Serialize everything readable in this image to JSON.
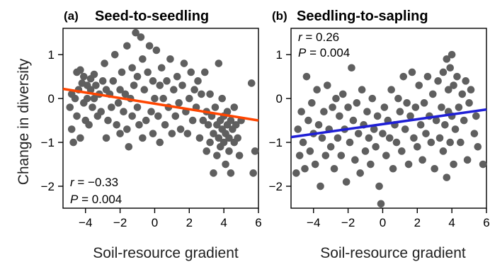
{
  "chart_data": [
    {
      "type": "scatter",
      "panel_letter": "(a)",
      "title": "Seed-to-seedling",
      "xlabel": "Soil-resource gradient",
      "ylabel": "Change in diversity",
      "xlim": [
        -5.3,
        6.0
      ],
      "ylim": [
        -2.5,
        1.6
      ],
      "xticks": [
        -4,
        -2,
        0,
        2,
        4,
        6
      ],
      "yticks": [
        -2,
        -1,
        0,
        1
      ],
      "grid": false,
      "stats": {
        "r_label": "r",
        "r_value": " = −0.33",
        "p_label": "P",
        "p_value": " = 0.004",
        "position": "bottom-left"
      },
      "fit_line": {
        "color": "#ff4500",
        "x": [
          -5.3,
          6.0
        ],
        "y": [
          0.22,
          -0.5
        ]
      },
      "points": [
        [
          -4.9,
          -0.2
        ],
        [
          -4.8,
          0.1
        ],
        [
          -4.8,
          -0.7
        ],
        [
          -4.7,
          -1.0
        ],
        [
          -4.6,
          0.0
        ],
        [
          -4.5,
          0.6
        ],
        [
          -4.5,
          -0.4
        ],
        [
          -4.4,
          0.2
        ],
        [
          -4.3,
          0.65
        ],
        [
          -4.3,
          -0.9
        ],
        [
          -4.2,
          0.35
        ],
        [
          -4.1,
          -0.1
        ],
        [
          -4.1,
          0.5
        ],
        [
          -4.0,
          -0.5
        ],
        [
          -3.9,
          0.3
        ],
        [
          -3.9,
          0.0
        ],
        [
          -3.8,
          -0.6
        ],
        [
          -3.7,
          0.45
        ],
        [
          -3.7,
          0.2
        ],
        [
          -3.6,
          -0.2
        ],
        [
          -3.5,
          0.55
        ],
        [
          -3.5,
          0.0
        ],
        [
          -3.4,
          0.3
        ],
        [
          -3.3,
          -0.4
        ],
        [
          -3.2,
          0.1
        ],
        [
          -3.1,
          -0.3
        ],
        [
          -3.0,
          0.4
        ],
        [
          -2.9,
          0.8
        ],
        [
          -2.8,
          -0.9
        ],
        [
          -2.8,
          0.2
        ],
        [
          -2.7,
          -0.5
        ],
        [
          -2.6,
          0.1
        ],
        [
          -2.5,
          -0.2
        ],
        [
          -2.4,
          0.4
        ],
        [
          -2.3,
          1.0
        ],
        [
          -2.2,
          -0.6
        ],
        [
          -2.1,
          -0.1
        ],
        [
          -2.0,
          0.2
        ],
        [
          -2.0,
          -0.8
        ],
        [
          -1.9,
          0.6
        ],
        [
          -1.8,
          -0.3
        ],
        [
          -1.7,
          0.1
        ],
        [
          -1.6,
          -0.7
        ],
        [
          -1.6,
          1.2
        ],
        [
          -1.5,
          -1.1
        ],
        [
          -1.4,
          0.0
        ],
        [
          -1.3,
          0.7
        ],
        [
          -1.3,
          -0.4
        ],
        [
          -1.2,
          0.3
        ],
        [
          -1.1,
          1.5
        ],
        [
          -1.0,
          -0.2
        ],
        [
          -1.0,
          0.5
        ],
        [
          -0.9,
          -0.6
        ],
        [
          -0.8,
          1.4
        ],
        [
          -0.7,
          0.9
        ],
        [
          -0.7,
          -0.9
        ],
        [
          -0.6,
          0.2
        ],
        [
          -0.5,
          -0.5
        ],
        [
          -0.4,
          0.6
        ],
        [
          -0.3,
          1.2
        ],
        [
          -0.2,
          -0.3
        ],
        [
          -0.1,
          0.4
        ],
        [
          -0.1,
          -0.8
        ],
        [
          0.0,
          0.0
        ],
        [
          0.1,
          1.1
        ],
        [
          0.2,
          -0.4
        ],
        [
          0.3,
          0.3
        ],
        [
          0.3,
          -1.0
        ],
        [
          0.4,
          0.7
        ],
        [
          0.5,
          0.0
        ],
        [
          0.6,
          -0.6
        ],
        [
          0.7,
          0.4
        ],
        [
          0.8,
          -0.2
        ],
        [
          0.9,
          0.9
        ],
        [
          1.0,
          -0.8
        ],
        [
          1.1,
          0.2
        ],
        [
          1.2,
          -0.4
        ],
        [
          1.3,
          0.5
        ],
        [
          1.4,
          -0.1
        ],
        [
          1.5,
          -0.7
        ],
        [
          1.6,
          0.3
        ],
        [
          1.7,
          0.8
        ],
        [
          1.8,
          -0.3
        ],
        [
          1.9,
          -0.8
        ],
        [
          2.0,
          0.0
        ],
        [
          2.1,
          0.6
        ],
        [
          2.2,
          -0.5
        ],
        [
          2.3,
          0.2
        ],
        [
          2.4,
          -0.2
        ],
        [
          2.5,
          0.4
        ],
        [
          2.6,
          -0.9
        ],
        [
          2.7,
          0.1
        ],
        [
          2.8,
          -0.5
        ],
        [
          2.9,
          0.6
        ],
        [
          3.0,
          -1.2
        ],
        [
          3.0,
          -0.3
        ],
        [
          3.1,
          -0.6
        ],
        [
          3.2,
          0.1
        ],
        [
          3.2,
          -1.0
        ],
        [
          3.3,
          -0.4
        ],
        [
          3.4,
          -0.8
        ],
        [
          3.4,
          -1.7
        ],
        [
          3.5,
          -0.2
        ],
        [
          3.6,
          -0.6
        ],
        [
          3.6,
          -1.3
        ],
        [
          3.7,
          -0.9
        ],
        [
          3.7,
          0.8
        ],
        [
          3.8,
          -0.5
        ],
        [
          3.8,
          -1.1
        ],
        [
          3.9,
          -0.7
        ],
        [
          3.9,
          0.0
        ],
        [
          4.0,
          -0.4
        ],
        [
          4.0,
          -1.0
        ],
        [
          4.1,
          -0.8
        ],
        [
          4.1,
          -1.5
        ],
        [
          4.2,
          -0.3
        ],
        [
          4.2,
          -0.6
        ],
        [
          4.3,
          -1.2
        ],
        [
          4.3,
          -0.9
        ],
        [
          4.4,
          -0.5
        ],
        [
          4.4,
          -1.7
        ],
        [
          4.5,
          -0.7
        ],
        [
          4.6,
          -0.2
        ],
        [
          4.6,
          -1.0
        ],
        [
          4.7,
          -0.6
        ],
        [
          4.8,
          -0.9
        ],
        [
          4.9,
          -1.3
        ],
        [
          5.0,
          -0.5
        ],
        [
          5.6,
          0.35
        ],
        [
          5.7,
          -1.7
        ],
        [
          5.8,
          -1.2
        ]
      ]
    },
    {
      "type": "scatter",
      "panel_letter": "(b)",
      "title": "Seedling-to-sapling",
      "xlabel": "Soil-resource gradient",
      "ylabel": "",
      "xlim": [
        -5.3,
        6.0
      ],
      "ylim": [
        -2.5,
        1.6
      ],
      "xticks": [
        -4,
        -2,
        0,
        2,
        4,
        6
      ],
      "yticks": [
        -2,
        -1,
        0,
        1
      ],
      "grid": false,
      "stats": {
        "r_label": "r",
        "r_value": " = 0.26",
        "p_label": "P",
        "p_value": " = 0.004",
        "position": "top-left"
      },
      "fit_line": {
        "color": "#1f1fd6",
        "x": [
          -5.3,
          6.0
        ],
        "y": [
          -0.88,
          -0.25
        ]
      },
      "points": [
        [
          -5.0,
          -1.7
        ],
        [
          -4.9,
          -0.7
        ],
        [
          -4.8,
          -1.3
        ],
        [
          -4.7,
          -0.3
        ],
        [
          -4.6,
          -1.0
        ],
        [
          -4.5,
          -1.6
        ],
        [
          -4.4,
          0.5
        ],
        [
          -4.3,
          -0.5
        ],
        [
          -4.2,
          -1.2
        ],
        [
          -4.1,
          -0.1
        ],
        [
          -4.0,
          -0.8
        ],
        [
          -3.9,
          -1.5
        ],
        [
          -3.8,
          0.2
        ],
        [
          -3.7,
          -0.6
        ],
        [
          -3.6,
          -2.0
        ],
        [
          -3.5,
          -0.9
        ],
        [
          -3.4,
          -0.3
        ],
        [
          -3.3,
          -1.3
        ],
        [
          -3.2,
          0.3
        ],
        [
          -3.1,
          -0.7
        ],
        [
          -3.0,
          -1.1
        ],
        [
          -2.9,
          -0.2
        ],
        [
          -2.8,
          -1.6
        ],
        [
          -2.7,
          0.0
        ],
        [
          -2.6,
          -0.9
        ],
        [
          -2.5,
          -0.4
        ],
        [
          -2.4,
          -1.3
        ],
        [
          -2.3,
          0.1
        ],
        [
          -2.2,
          -0.7
        ],
        [
          -2.1,
          -1.9
        ],
        [
          -2.0,
          -0.2
        ],
        [
          -1.9,
          -1.0
        ],
        [
          -1.8,
          0.7
        ],
        [
          -1.7,
          -0.5
        ],
        [
          -1.6,
          -1.4
        ],
        [
          -1.5,
          -0.1
        ],
        [
          -1.4,
          -0.8
        ],
        [
          -1.3,
          -1.7
        ],
        [
          -1.2,
          0.2
        ],
        [
          -1.1,
          -0.6
        ],
        [
          -1.0,
          -1.2
        ],
        [
          -0.9,
          -0.3
        ],
        [
          -0.8,
          -0.9
        ],
        [
          -0.7,
          -1.5
        ],
        [
          -0.6,
          0.0
        ],
        [
          -0.5,
          -0.7
        ],
        [
          -0.4,
          -1.1
        ],
        [
          -0.3,
          -0.4
        ],
        [
          -0.2,
          -2.0
        ],
        [
          -0.1,
          -2.4
        ],
        [
          0.0,
          -0.8
        ],
        [
          0.1,
          -0.2
        ],
        [
          0.2,
          -1.3
        ],
        [
          0.3,
          -0.5
        ],
        [
          0.4,
          -0.9
        ],
        [
          0.5,
          0.2
        ],
        [
          0.6,
          -1.6
        ],
        [
          0.7,
          -0.6
        ],
        [
          0.8,
          -1.0
        ],
        [
          0.9,
          0.0
        ],
        [
          1.0,
          -0.3
        ],
        [
          1.1,
          -1.2
        ],
        [
          1.2,
          0.5
        ],
        [
          1.3,
          -0.7
        ],
        [
          1.4,
          -0.1
        ],
        [
          1.5,
          -1.5
        ],
        [
          1.6,
          -0.4
        ],
        [
          1.7,
          0.6
        ],
        [
          1.8,
          -0.9
        ],
        [
          1.9,
          -0.2
        ],
        [
          2.0,
          -1.1
        ],
        [
          2.1,
          0.3
        ],
        [
          2.2,
          -0.6
        ],
        [
          2.3,
          -1.4
        ],
        [
          2.4,
          -0.1
        ],
        [
          2.5,
          -0.8
        ],
        [
          2.6,
          0.5
        ],
        [
          2.7,
          -0.4
        ],
        [
          2.8,
          -1.0
        ],
        [
          2.9,
          0.1
        ],
        [
          3.0,
          -1.6
        ],
        [
          3.1,
          -0.5
        ],
        [
          3.2,
          0.4
        ],
        [
          3.3,
          -0.9
        ],
        [
          3.4,
          -0.2
        ],
        [
          3.5,
          -1.2
        ],
        [
          3.5,
          0.6
        ],
        [
          3.6,
          -0.6
        ],
        [
          3.7,
          0.9
        ],
        [
          3.7,
          -1.8
        ],
        [
          3.8,
          -0.3
        ],
        [
          3.8,
          0.2
        ],
        [
          3.9,
          -1.0
        ],
        [
          3.9,
          0.7
        ],
        [
          4.0,
          -0.4
        ],
        [
          4.0,
          1.0
        ],
        [
          4.1,
          -1.5
        ],
        [
          4.1,
          0.3
        ],
        [
          4.2,
          -0.7
        ],
        [
          4.3,
          0.5
        ],
        [
          4.4,
          -0.2
        ],
        [
          4.5,
          -1.0
        ],
        [
          4.6,
          0.1
        ],
        [
          4.7,
          -0.5
        ],
        [
          4.8,
          0.4
        ],
        [
          4.9,
          -1.4
        ],
        [
          5.0,
          -0.1
        ],
        [
          5.1,
          0.2
        ],
        [
          5.3,
          -0.8
        ],
        [
          5.4,
          -0.4
        ],
        [
          5.5,
          -1.1
        ],
        [
          5.8,
          -1.5
        ]
      ]
    }
  ]
}
